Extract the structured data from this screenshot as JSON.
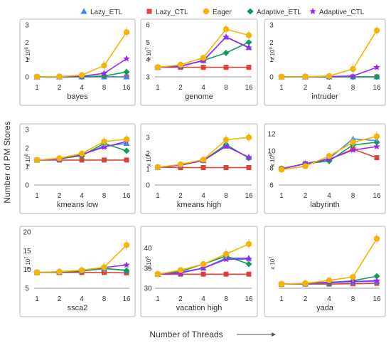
{
  "figure": {
    "ylabel": "Number of PM Stores",
    "xlabel": "Number of Threads",
    "legend": [
      {
        "name": "Lazy_ETL",
        "color": "#4285F4",
        "marker": "triangle"
      },
      {
        "name": "Lazy_CTL",
        "color": "#DB4437",
        "marker": "square"
      },
      {
        "name": "Eager",
        "color": "#F4B400",
        "marker": "circle"
      },
      {
        "name": "Adaptive_ETL",
        "color": "#0F9D58",
        "marker": "diamond"
      },
      {
        "name": "Adaptive_CTL",
        "color": "#9C27F0",
        "marker": "star"
      }
    ]
  },
  "chart_data": [
    {
      "type": "line",
      "title": "bayes",
      "categories": [
        "1",
        "2",
        "4",
        "8",
        "16"
      ],
      "ylim": [
        0,
        3
      ],
      "yticks": [
        "0",
        "1",
        "2",
        "3"
      ],
      "scale_label": "x 10",
      "scale_exp": "6",
      "series": [
        {
          "name": "Lazy_ETL",
          "values": [
            0,
            0,
            0,
            0,
            0
          ]
        },
        {
          "name": "Lazy_CTL",
          "values": [
            0,
            0,
            0,
            0,
            0
          ]
        },
        {
          "name": "Eager",
          "values": [
            0,
            0.02,
            0.1,
            0.65,
            2.58
          ]
        },
        {
          "name": "Adaptive_ETL",
          "values": [
            0,
            0,
            0.01,
            0.05,
            0.28
          ]
        },
        {
          "name": "Adaptive_CTL",
          "values": [
            0,
            0.01,
            0.04,
            0.2,
            1.05
          ]
        }
      ]
    },
    {
      "type": "line",
      "title": "genome",
      "categories": [
        "1",
        "2",
        "4",
        "8",
        "16"
      ],
      "ylim": [
        3,
        6
      ],
      "yticks": [
        "3",
        "4",
        "5",
        "6"
      ],
      "scale_label": "x 10",
      "scale_exp": "7",
      "series": [
        {
          "name": "Lazy_ETL",
          "values": [
            3.55,
            3.62,
            3.95,
            5.3,
            4.7
          ]
        },
        {
          "name": "Lazy_CTL",
          "values": [
            3.55,
            3.55,
            3.55,
            3.55,
            3.55
          ]
        },
        {
          "name": "Eager",
          "values": [
            3.55,
            3.7,
            4.1,
            5.75,
            5.4
          ]
        },
        {
          "name": "Adaptive_ETL",
          "values": [
            3.55,
            3.62,
            3.95,
            4.38,
            5.0
          ]
        },
        {
          "name": "Adaptive_CTL",
          "values": [
            3.55,
            3.62,
            3.93,
            5.3,
            4.68
          ]
        }
      ]
    },
    {
      "type": "line",
      "title": "intruder",
      "categories": [
        "1",
        "2",
        "4",
        "8",
        "16"
      ],
      "ylim": [
        0,
        3
      ],
      "yticks": [
        "0",
        "1",
        "2",
        "3"
      ],
      "scale_label": "x 10",
      "scale_exp": "9",
      "series": [
        {
          "name": "Lazy_ETL",
          "values": [
            0,
            0,
            0,
            0,
            0
          ]
        },
        {
          "name": "Lazy_CTL",
          "values": [
            0,
            0,
            0,
            0,
            0
          ]
        },
        {
          "name": "Eager",
          "values": [
            0,
            0.01,
            0.05,
            0.45,
            2.68
          ]
        },
        {
          "name": "Adaptive_ETL",
          "values": [
            0,
            0,
            0,
            0,
            0
          ]
        },
        {
          "name": "Adaptive_CTL",
          "values": [
            0,
            0.01,
            0.02,
            0.05,
            0.55
          ]
        }
      ]
    },
    {
      "type": "line",
      "title": "kmeans low",
      "categories": [
        "1",
        "2",
        "4",
        "8",
        "16"
      ],
      "ylim": [
        0,
        3
      ],
      "yticks": [
        "0",
        "1",
        "2",
        "3"
      ],
      "scale_label": "x 10",
      "scale_exp": "8",
      "series": [
        {
          "name": "Lazy_ETL",
          "values": [
            1.35,
            1.4,
            1.65,
            2.1,
            2.25
          ]
        },
        {
          "name": "Lazy_CTL",
          "values": [
            1.35,
            1.35,
            1.35,
            1.35,
            1.35
          ]
        },
        {
          "name": "Eager",
          "values": [
            1.35,
            1.45,
            1.7,
            2.35,
            2.48
          ]
        },
        {
          "name": "Adaptive_ETL",
          "values": [
            1.35,
            1.42,
            1.58,
            2.25,
            1.85
          ]
        },
        {
          "name": "Adaptive_CTL",
          "values": [
            1.35,
            1.42,
            1.65,
            2.05,
            2.35
          ]
        }
      ]
    },
    {
      "type": "line",
      "title": "kmeans high",
      "categories": [
        "1",
        "2",
        "4",
        "8",
        "16"
      ],
      "ylim": [
        0,
        3.5
      ],
      "yticks": [
        "0",
        "1",
        "2",
        "3"
      ],
      "scale_label": "x 10",
      "scale_exp": "8",
      "series": [
        {
          "name": "Lazy_ETL",
          "values": [
            1.12,
            1.25,
            1.55,
            2.45,
            1.75
          ]
        },
        {
          "name": "Lazy_CTL",
          "values": [
            1.12,
            1.1,
            1.1,
            1.1,
            1.1
          ]
        },
        {
          "name": "Eager",
          "values": [
            1.12,
            1.3,
            1.6,
            2.85,
            3.0
          ]
        },
        {
          "name": "Adaptive_ETL",
          "values": [
            1.12,
            1.25,
            1.55,
            2.55,
            1.7
          ]
        },
        {
          "name": "Adaptive_CTL",
          "values": [
            1.12,
            1.25,
            1.55,
            2.45,
            1.75
          ]
        }
      ]
    },
    {
      "type": "line",
      "title": "labyrinth",
      "categories": [
        "1",
        "2",
        "4",
        "8",
        "16"
      ],
      "ylim": [
        6,
        12.5
      ],
      "yticks": [
        "6",
        "8",
        "10",
        "12"
      ],
      "scale_label": "x 10",
      "scale_exp": "6",
      "series": [
        {
          "name": "Lazy_ETL",
          "values": [
            7.9,
            8.5,
            9.1,
            11.4,
            11.2
          ]
        },
        {
          "name": "Lazy_CTL",
          "values": [
            7.9,
            8.5,
            9.0,
            10.2,
            9.2
          ]
        },
        {
          "name": "Eager",
          "values": [
            7.8,
            8.2,
            9.4,
            11.0,
            11.7
          ]
        },
        {
          "name": "Adaptive_ETL",
          "values": [
            7.9,
            8.5,
            8.8,
            10.7,
            11.0
          ]
        },
        {
          "name": "Adaptive_CTL",
          "values": [
            7.9,
            8.5,
            9.0,
            10.1,
            10.5
          ]
        }
      ]
    },
    {
      "type": "line",
      "title": "ssca2",
      "categories": [
        "1",
        "2",
        "4",
        "8",
        "16"
      ],
      "ylim": [
        5,
        20
      ],
      "yticks": [
        "5",
        "10",
        "15",
        "20"
      ],
      "scale_label": "x 10",
      "scale_exp": "7",
      "series": [
        {
          "name": "Lazy_ETL",
          "values": [
            9.2,
            9.3,
            9.6,
            10.2,
            9.8
          ]
        },
        {
          "name": "Lazy_CTL",
          "values": [
            9.2,
            9.2,
            9.2,
            9.2,
            9.1
          ]
        },
        {
          "name": "Eager",
          "values": [
            9.2,
            9.4,
            9.8,
            10.6,
            16.5
          ]
        },
        {
          "name": "Adaptive_ETL",
          "values": [
            9.2,
            9.3,
            9.6,
            10.3,
            9.7
          ]
        },
        {
          "name": "Adaptive_CTL",
          "values": [
            9.2,
            9.4,
            9.8,
            10.5,
            11.2
          ]
        }
      ]
    },
    {
      "type": "line",
      "title": "vacation high",
      "categories": [
        "1",
        "2",
        "4",
        "8",
        "16"
      ],
      "ylim": [
        30,
        44
      ],
      "yticks": [
        "30",
        "35",
        "40"
      ],
      "scale_label": "x 10",
      "scale_exp": "6",
      "series": [
        {
          "name": "Lazy_ETL",
          "values": [
            33.5,
            34,
            35,
            37.5,
            37.5
          ]
        },
        {
          "name": "Lazy_CTL",
          "values": [
            33.5,
            33.5,
            33.5,
            33.5,
            33.5
          ]
        },
        {
          "name": "Eager",
          "values": [
            33.5,
            34.5,
            36,
            38.5,
            41
          ]
        },
        {
          "name": "Adaptive_ETL",
          "values": [
            33.5,
            34.2,
            36,
            38,
            36
          ]
        },
        {
          "name": "Adaptive_CTL",
          "values": [
            33.5,
            33.8,
            35,
            37.2,
            37.3
          ]
        }
      ]
    },
    {
      "type": "line",
      "title": "yada",
      "categories": [
        "1",
        "2",
        "4",
        "8",
        "16"
      ],
      "ylim": [
        0,
        15
      ],
      "yticks": [],
      "scale_label": "x 10",
      "scale_exp": "7",
      "series": [
        {
          "name": "Lazy_ETL",
          "values": [
            1.1,
            1.2,
            1.4,
            1.7,
            1.8
          ]
        },
        {
          "name": "Lazy_CTL",
          "values": [
            1.1,
            1.1,
            1.1,
            1.2,
            1.3
          ]
        },
        {
          "name": "Eager",
          "values": [
            1.1,
            1.3,
            2.1,
            3.0,
            13.2
          ]
        },
        {
          "name": "Adaptive_ETL",
          "values": [
            1.1,
            1.2,
            1.5,
            2.0,
            3.2
          ]
        },
        {
          "name": "Adaptive_CTL",
          "values": [
            1.1,
            1.3,
            1.6,
            1.8,
            2.0
          ]
        }
      ]
    }
  ]
}
